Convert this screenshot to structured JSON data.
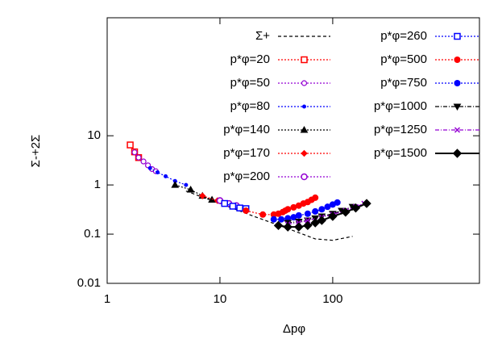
{
  "chart_data": {
    "type": "line",
    "log_x": true,
    "log_y": true,
    "x_label": "Δpφ",
    "y_label": "Σ-+2Σ",
    "xlim": [
      1,
      2000
    ],
    "ylim": [
      0.01,
      2500
    ],
    "xticks": [
      1,
      10,
      100
    ],
    "yticks": [
      0.01,
      0.1,
      1,
      10
    ],
    "series": [
      {
        "name": "Σ+",
        "color": "#000000",
        "marker": "none",
        "dash": "4,3",
        "x": [
          5,
          10,
          20,
          40,
          70,
          100,
          150
        ],
        "values": [
          0.75,
          0.42,
          0.23,
          0.13,
          0.08,
          0.075,
          0.09
        ]
      },
      {
        "name": "p*φ=20",
        "color": "#ff0000",
        "marker": "open-square",
        "dash": "2,2",
        "x": [
          1.6,
          1.75,
          1.9
        ],
        "values": [
          6.5,
          4.7,
          3.6
        ]
      },
      {
        "name": "p*φ=50",
        "color": "#9400d3",
        "marker": "open-circle-small",
        "dash": "2,2",
        "x": [
          1.75,
          1.9,
          2.1,
          2.3,
          2.5,
          2.7
        ],
        "values": [
          4.6,
          3.6,
          3.0,
          2.5,
          2.1,
          1.9
        ]
      },
      {
        "name": "p*φ=80",
        "color": "#0000ff",
        "marker": "dot",
        "dash": "2,2",
        "x": [
          2.4,
          2.8,
          3.3,
          4,
          5
        ],
        "values": [
          2.2,
          1.8,
          1.5,
          1.2,
          1.0
        ]
      },
      {
        "name": "p*φ=140",
        "color": "#000000",
        "marker": "triangle",
        "dash": "2,2",
        "x": [
          4,
          5.5,
          7,
          8.5
        ],
        "values": [
          1.0,
          0.8,
          0.6,
          0.5
        ]
      },
      {
        "name": "p*φ=170",
        "color": "#ff0000",
        "marker": "diamond-small",
        "dash": "2,2",
        "x": [
          7,
          9.5,
          12
        ],
        "values": [
          0.6,
          0.48,
          0.42
        ]
      },
      {
        "name": "p*φ=200",
        "color": "#9400d3",
        "marker": "open-circle",
        "dash": "2,2",
        "x": [
          10,
          12,
          14
        ],
        "values": [
          0.48,
          0.42,
          0.38
        ]
      },
      {
        "name": "p*φ=260",
        "color": "#0000ff",
        "marker": "open-square",
        "dash": "2,2",
        "x": [
          11,
          13,
          15,
          17
        ],
        "values": [
          0.42,
          0.37,
          0.34,
          0.33
        ]
      },
      {
        "name": "p*φ=500",
        "color": "#ff0000",
        "marker": "circle",
        "dash": "2,2",
        "x": [
          17,
          24,
          30,
          33,
          36,
          38,
          40,
          45,
          50,
          55,
          60,
          65,
          70
        ],
        "values": [
          0.3,
          0.25,
          0.25,
          0.26,
          0.28,
          0.3,
          0.32,
          0.35,
          0.38,
          0.42,
          0.45,
          0.5,
          0.55
        ]
      },
      {
        "name": "p*φ=750",
        "color": "#0000ff",
        "marker": "circle",
        "dash": "2,2",
        "x": [
          30,
          35,
          40,
          45,
          50,
          60,
          70,
          80,
          90,
          100,
          110
        ],
        "values": [
          0.2,
          0.2,
          0.21,
          0.22,
          0.24,
          0.26,
          0.29,
          0.32,
          0.36,
          0.4,
          0.44
        ]
      },
      {
        "name": "p*φ=1000",
        "color": "#000000",
        "marker": "triangle-down",
        "dash": "5,2,1,2",
        "x": [
          40,
          50,
          60,
          70,
          80,
          100,
          120,
          150
        ],
        "values": [
          0.17,
          0.18,
          0.19,
          0.21,
          0.23,
          0.26,
          0.3,
          0.36
        ]
      },
      {
        "name": "p*φ=1250",
        "color": "#9400d3",
        "marker": "cross",
        "dash": "5,2,1,2",
        "x": [
          40,
          50,
          60,
          80,
          100,
          130,
          160,
          190
        ],
        "values": [
          0.16,
          0.17,
          0.19,
          0.22,
          0.25,
          0.3,
          0.36,
          0.42
        ]
      },
      {
        "name": "p*φ=1500",
        "color": "#000000",
        "marker": "diamond",
        "dash": "none",
        "x": [
          33,
          40,
          50,
          60,
          70,
          80,
          100,
          130,
          160,
          200
        ],
        "values": [
          0.15,
          0.14,
          0.14,
          0.15,
          0.17,
          0.19,
          0.23,
          0.28,
          0.34,
          0.42
        ]
      }
    ]
  }
}
